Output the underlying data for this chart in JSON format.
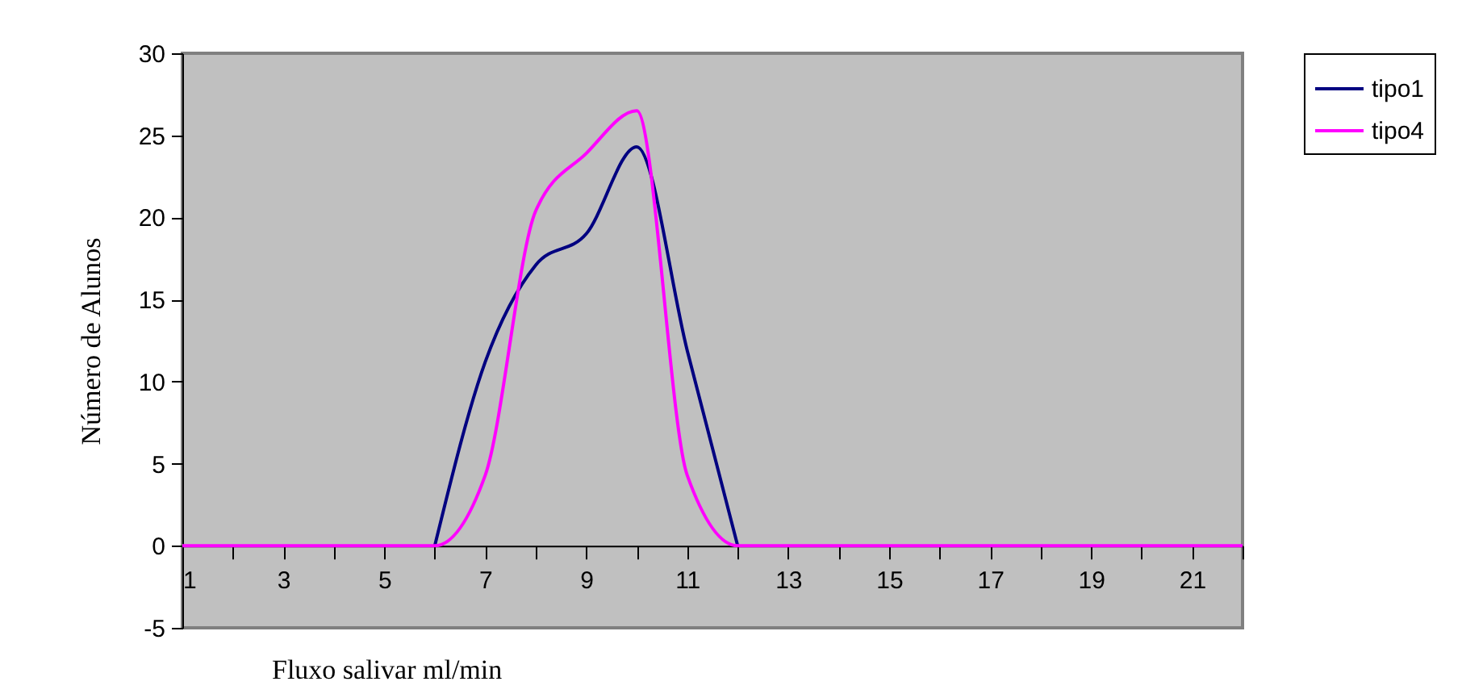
{
  "chart_data": {
    "type": "line",
    "xlabel": "Fluxo salivar ml/min",
    "ylabel": "Número de Alunos",
    "x": [
      1,
      2,
      3,
      4,
      5,
      6,
      7,
      8,
      9,
      10,
      11,
      12,
      13,
      14,
      15,
      16,
      17,
      18,
      19,
      20,
      21,
      22
    ],
    "series": [
      {
        "name": "tipo1",
        "color": "#000080",
        "values": [
          null,
          null,
          null,
          null,
          null,
          0,
          11.2,
          17.1,
          19,
          24.3,
          11.9,
          0,
          null,
          null,
          null,
          null,
          null,
          null,
          null,
          null,
          null,
          null
        ]
      },
      {
        "name": "tipo4",
        "color": "#ff00ff",
        "values": [
          0,
          0,
          0,
          0,
          0,
          0,
          4.3,
          20.4,
          23.9,
          26.5,
          4.3,
          0,
          0,
          0,
          0,
          0,
          0,
          0,
          0,
          0,
          0,
          0
        ]
      }
    ],
    "xlim": [
      1,
      22
    ],
    "xticks": [
      1,
      {
        "value": 2,
        "label": null
      },
      3,
      {
        "value": 4,
        "label": null
      },
      5,
      {
        "value": 6,
        "label": null
      },
      7,
      {
        "value": 8,
        "label": null
      },
      9,
      {
        "value": 10,
        "label": null
      },
      11,
      {
        "value": 12,
        "label": null
      },
      13,
      {
        "value": 14,
        "label": null
      },
      15,
      {
        "value": 16,
        "label": null
      },
      17,
      {
        "value": 18,
        "label": null
      },
      19,
      {
        "value": 20,
        "label": null
      },
      21,
      {
        "value": 22,
        "label": null
      }
    ],
    "ylim": [
      -5,
      30
    ],
    "yticks": [
      -5,
      0,
      5,
      10,
      15,
      20,
      25,
      30
    ],
    "grid": false,
    "legend": "right",
    "marker": "none",
    "line_style": "solid"
  }
}
